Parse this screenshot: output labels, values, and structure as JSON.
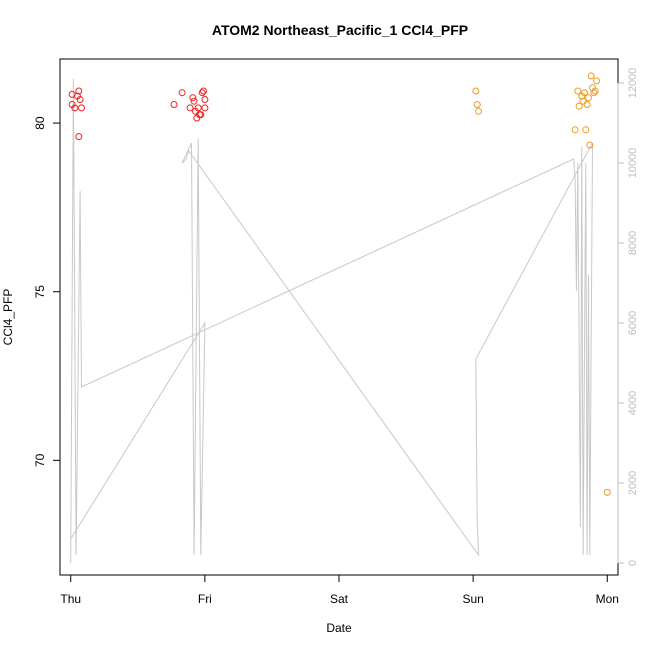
{
  "chart_data": {
    "type": "scatter",
    "title": "ATOM2 Northeast_Pacific_1 CCl4_PFP",
    "xlabel": "Date",
    "ylabel": "CCl4_PFP",
    "x_ticks": [
      "Thu",
      "Fri",
      "Sat",
      "Sun",
      "Mon"
    ],
    "y_ticks": [
      "70",
      "75",
      "80"
    ],
    "y2_ticks": [
      "0",
      "2000",
      "4000",
      "6000",
      "8000",
      "10000",
      "12000"
    ],
    "xlim": [
      -0.08,
      4.08
    ],
    "ylim": [
      66.6,
      81.9
    ],
    "y2lim": [
      -300,
      12600
    ],
    "colors": {
      "red_points": "#ee2222",
      "orange_points": "#f39a1e",
      "altitude_line": "#c8c8c8",
      "right_axis": "#bdbdbd"
    },
    "series": [
      {
        "color": "red",
        "points": [
          [
            0.01,
            80.85
          ],
          [
            0.01,
            80.55
          ],
          [
            0.03,
            80.45
          ],
          [
            0.05,
            80.8
          ],
          [
            0.06,
            79.6
          ],
          [
            0.06,
            80.95
          ],
          [
            0.07,
            80.7
          ],
          [
            0.08,
            80.45
          ],
          [
            0.77,
            80.55
          ],
          [
            0.83,
            80.9
          ],
          [
            0.89,
            80.45
          ],
          [
            0.91,
            80.75
          ],
          [
            0.92,
            80.65
          ],
          [
            0.93,
            80.35
          ],
          [
            0.94,
            80.15
          ],
          [
            0.95,
            80.45
          ],
          [
            0.96,
            80.25
          ],
          [
            0.97,
            80.25
          ],
          [
            0.98,
            80.9
          ],
          [
            0.99,
            80.95
          ],
          [
            1.0,
            80.7
          ],
          [
            1.0,
            80.45
          ]
        ]
      },
      {
        "color": "orange",
        "points": [
          [
            3.02,
            80.95
          ],
          [
            3.03,
            80.55
          ],
          [
            3.04,
            80.35
          ],
          [
            3.76,
            79.8
          ],
          [
            3.78,
            80.95
          ],
          [
            3.79,
            80.5
          ],
          [
            3.81,
            80.8
          ],
          [
            3.82,
            80.65
          ],
          [
            3.83,
            80.9
          ],
          [
            3.84,
            79.8
          ],
          [
            3.85,
            80.55
          ],
          [
            3.86,
            80.75
          ],
          [
            3.87,
            79.35
          ],
          [
            3.88,
            81.4
          ],
          [
            3.89,
            81.05
          ],
          [
            3.9,
            80.9
          ],
          [
            3.91,
            80.95
          ],
          [
            3.92,
            81.25
          ],
          [
            4.0,
            69.05
          ]
        ]
      }
    ],
    "altitude_line": [
      [
        0.0,
        0
      ],
      [
        0.02,
        12100
      ],
      [
        0.04,
        200
      ],
      [
        0.07,
        9300
      ],
      [
        0.08,
        4400
      ],
      [
        3.75,
        10100
      ],
      [
        3.76,
        9600
      ],
      [
        3.77,
        6800
      ],
      [
        3.78,
        10000
      ],
      [
        3.8,
        900
      ],
      [
        3.81,
        10400
      ],
      [
        3.82,
        200
      ],
      [
        3.84,
        10000
      ],
      [
        3.85,
        200
      ],
      [
        3.86,
        7200
      ],
      [
        3.87,
        200
      ],
      [
        3.89,
        10500
      ],
      [
        3.02,
        5100
      ],
      [
        3.03,
        1000
      ],
      [
        3.04,
        200
      ],
      [
        0.88,
        10300
      ],
      [
        0.86,
        10100
      ],
      [
        0.83,
        10000
      ],
      [
        0.9,
        10500
      ],
      [
        0.92,
        200
      ],
      [
        0.95,
        10600
      ],
      [
        0.97,
        200
      ],
      [
        1.0,
        6000
      ],
      [
        0.0,
        600
      ]
    ]
  }
}
